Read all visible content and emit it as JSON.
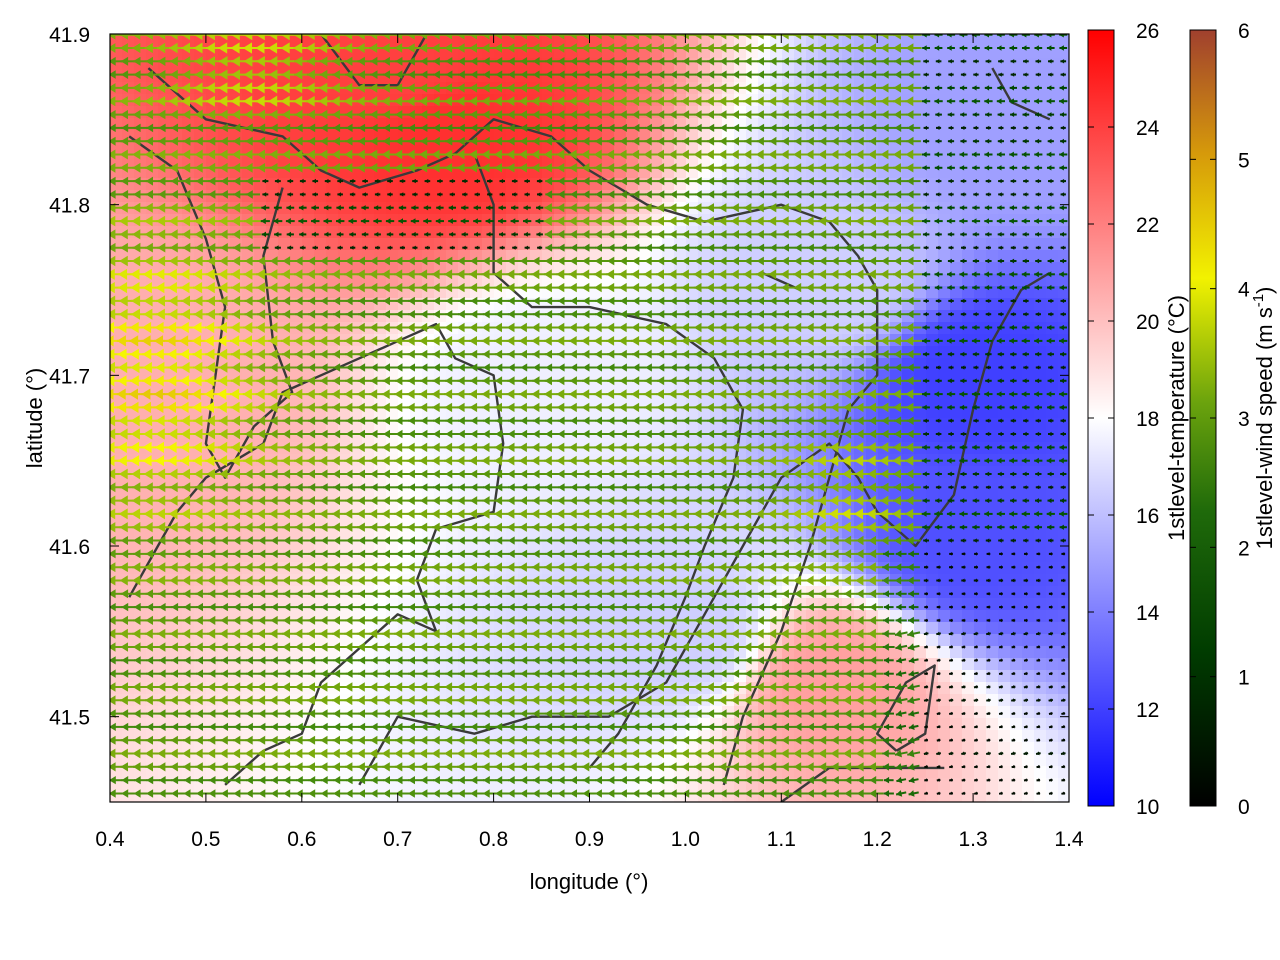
{
  "chart_data": {
    "type": "heatmap",
    "subtype": "map-with-wind-vectors",
    "xlabel": "longitude (°)",
    "ylabel": "latitude (°)",
    "xlim": [
      0.4,
      1.4
    ],
    "ylim": [
      41.45,
      41.9
    ],
    "x_ticks": [
      0.4,
      0.5,
      0.6,
      0.7,
      0.8,
      0.9,
      1.0,
      1.1,
      1.2,
      1.3,
      1.4
    ],
    "x_tick_labels": [
      "0.4",
      "0.5",
      "0.6",
      "0.7",
      "0.8",
      "0.9",
      "1.0",
      "1.1",
      "1.2",
      "1.3",
      "1.4"
    ],
    "y_ticks": [
      41.5,
      41.6,
      41.7,
      41.8,
      41.9
    ],
    "y_tick_labels": [
      "41.5",
      "41.6",
      "41.7",
      "41.8",
      "41.9"
    ],
    "temperature_colorbar": {
      "label": "1stlevel-temperature (°C)",
      "range": [
        10,
        26
      ],
      "ticks": [
        10,
        12,
        14,
        16,
        18,
        20,
        22,
        24,
        26
      ],
      "tick_labels": [
        "10",
        "12",
        "14",
        "16",
        "18",
        "20",
        "22",
        "24",
        "26"
      ],
      "colors": [
        "#0000ff",
        "#ffffff",
        "#ff0000"
      ]
    },
    "wind_colorbar": {
      "label_main": "1stlevel-wind speed (m s",
      "label_sup": "-1",
      "label_end": ")",
      "range": [
        0,
        6
      ],
      "ticks": [
        0,
        1,
        2,
        3,
        4,
        5,
        6
      ],
      "tick_labels": [
        "0",
        "1",
        "2",
        "3",
        "4",
        "5",
        "6"
      ],
      "colors": [
        "#000000",
        "#004d00",
        "#2e7d0e",
        "#7fae0c",
        "#f6f600",
        "#d49b0a",
        "#a0422c"
      ]
    },
    "temperature_field": {
      "description_points": [
        {
          "lon": 0.45,
          "lat": 41.7,
          "t": 20.5
        },
        {
          "lon": 0.7,
          "lat": 41.88,
          "t": 24
        },
        {
          "lon": 0.75,
          "lat": 41.84,
          "t": 24.5
        },
        {
          "lon": 0.85,
          "lat": 41.7,
          "t": 17.5
        },
        {
          "lon": 1.0,
          "lat": 41.55,
          "t": 16.5
        },
        {
          "lon": 1.15,
          "lat": 41.75,
          "t": 16.5
        },
        {
          "lon": 1.3,
          "lat": 41.7,
          "t": 12
        },
        {
          "lon": 1.3,
          "lat": 41.6,
          "t": 12.5
        },
        {
          "lon": 1.35,
          "lat": 41.85,
          "t": 15
        },
        {
          "lon": 1.15,
          "lat": 41.52,
          "t": 21
        }
      ]
    },
    "wind_field": {
      "dominant_direction": "east-to-west (arrows pointing west)",
      "speed_range_mps": [
        0,
        4.5
      ]
    }
  }
}
